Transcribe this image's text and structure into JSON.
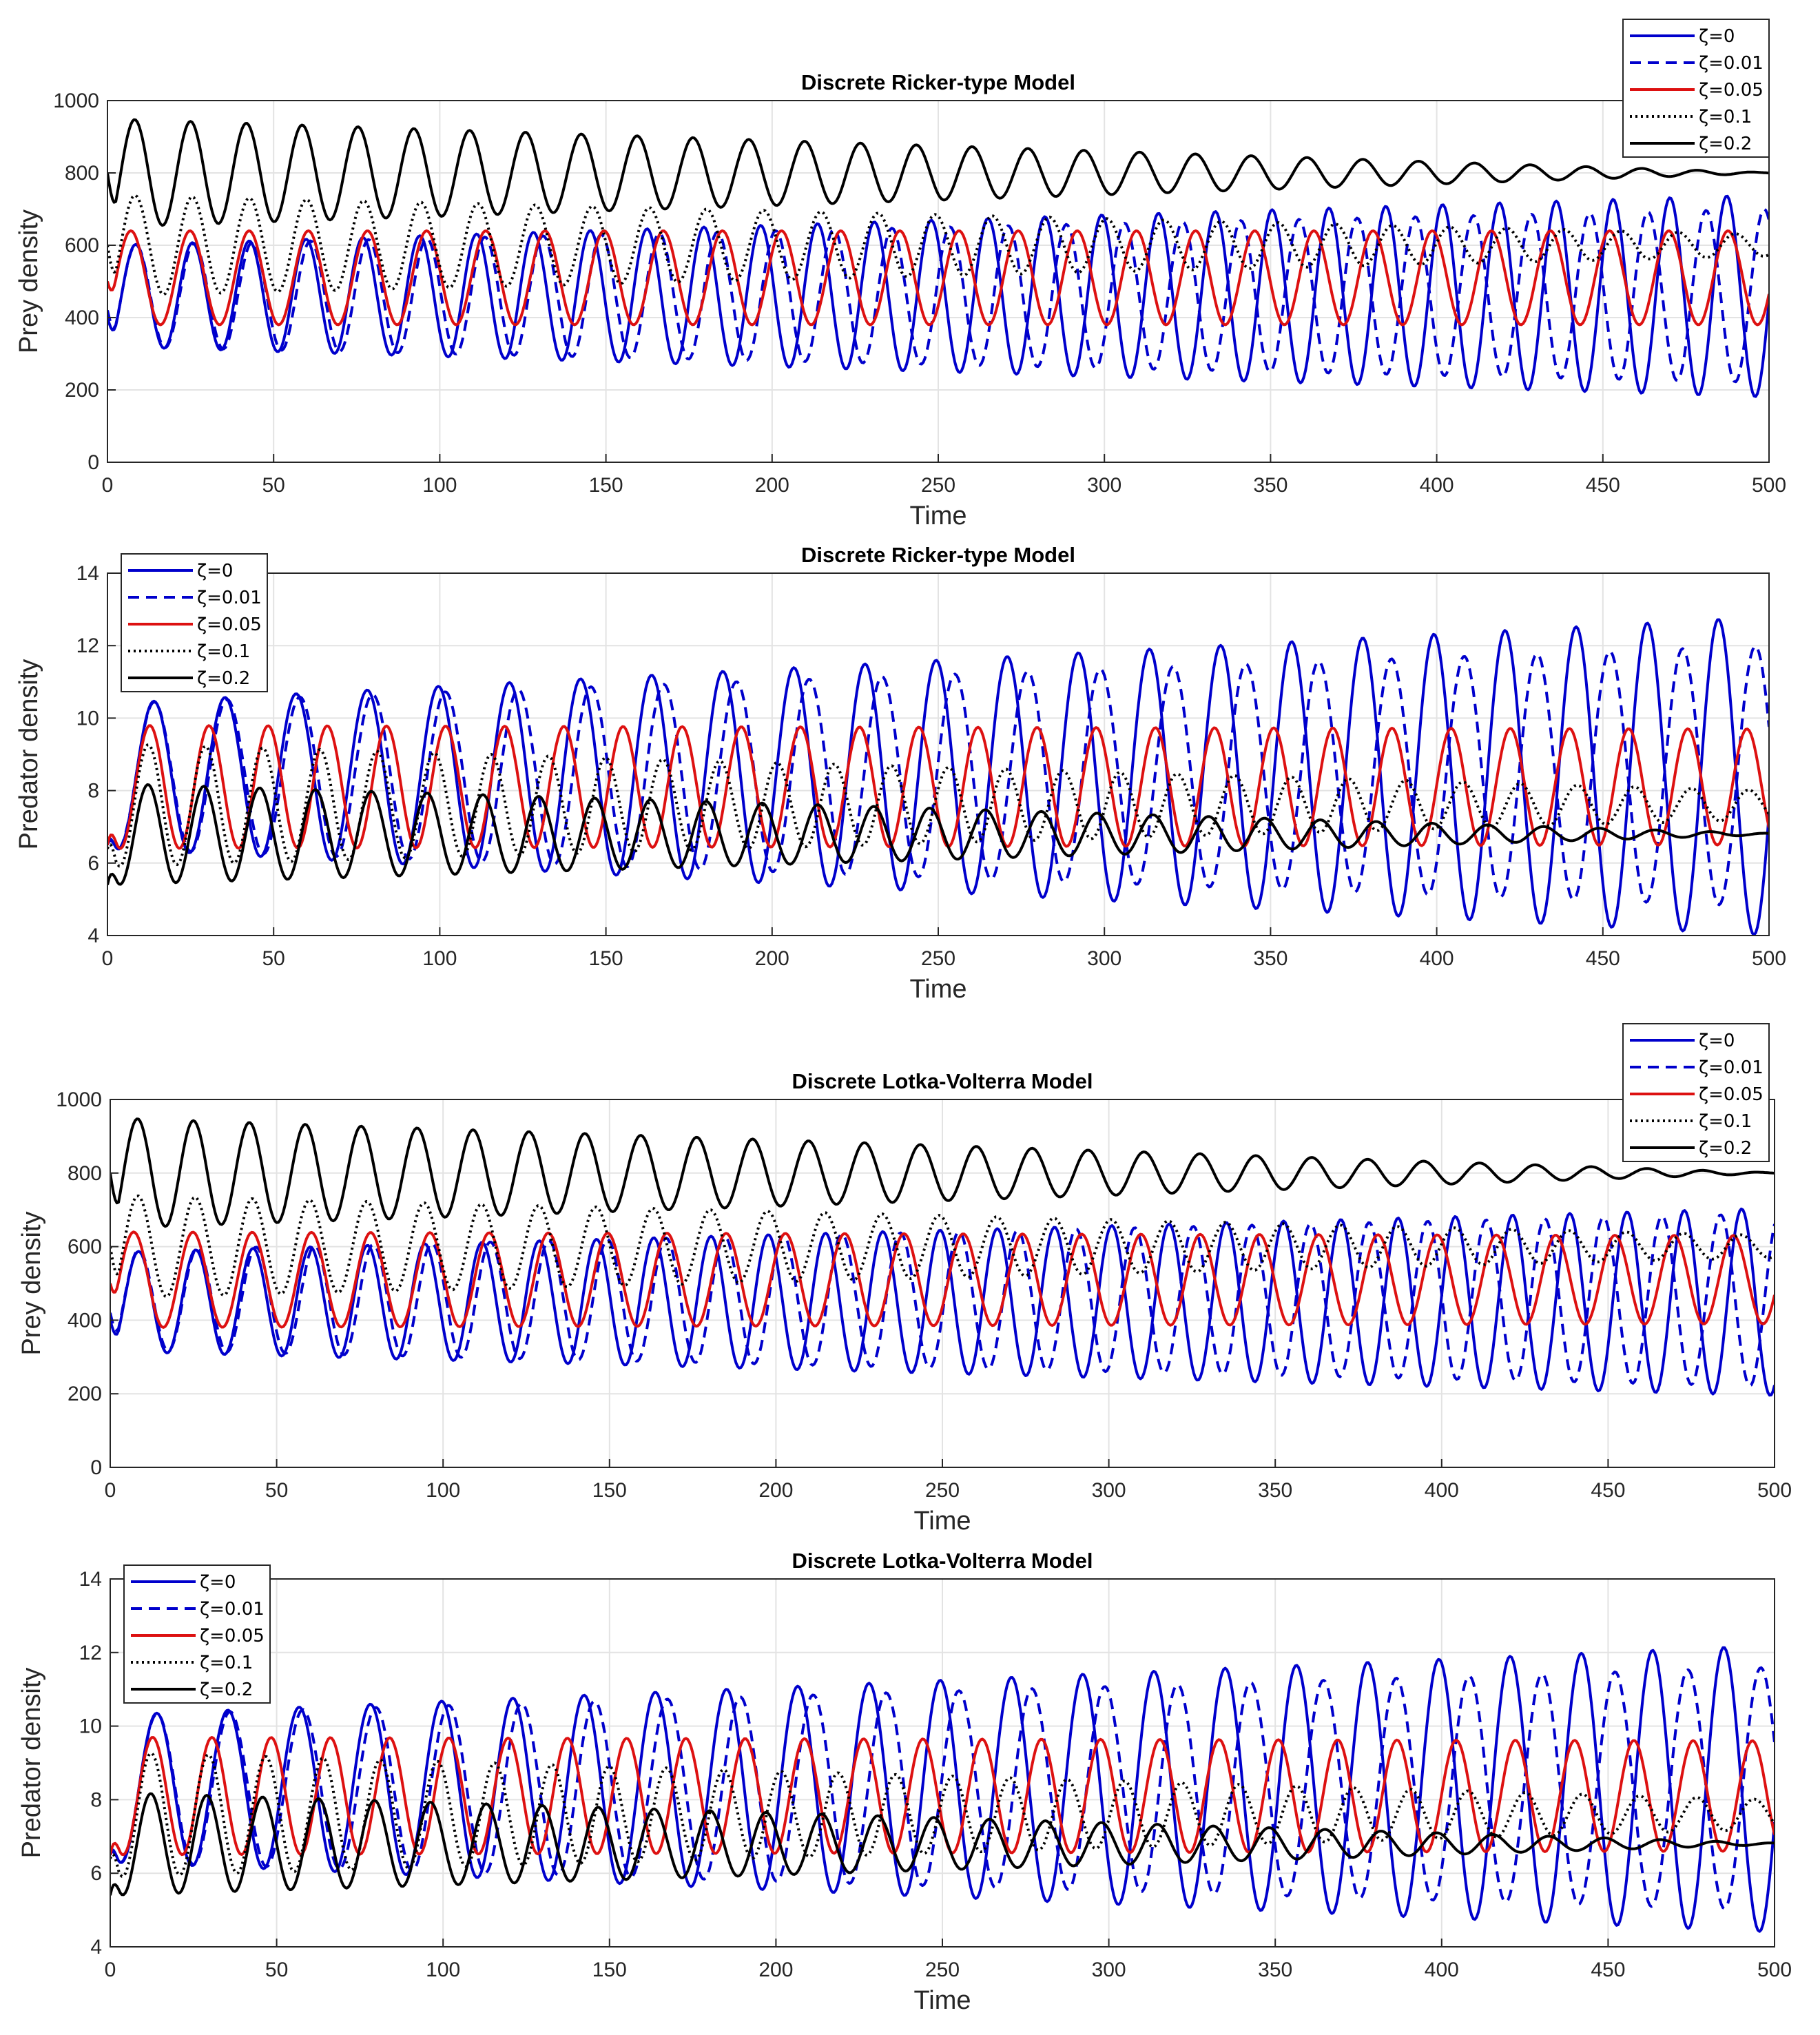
{
  "chart_data": [
    {
      "type": "line",
      "title": "Discrete Ricker-type Model",
      "xlabel": "Time",
      "ylabel": "Prey density",
      "xlim": [
        0,
        500
      ],
      "ylim": [
        0,
        1000
      ],
      "xticks": [
        0,
        50,
        100,
        150,
        200,
        250,
        300,
        350,
        400,
        450,
        500
      ],
      "yticks": [
        0,
        200,
        400,
        600,
        800,
        1000
      ],
      "ytick_labels": [
        "0",
        "200",
        "400",
        "600",
        "800",
        "1000"
      ],
      "grid": true,
      "legend_position": "top-right",
      "series": [
        {
          "name": "ζ=0",
          "color": "#0000cc",
          "style": "solid",
          "x0": 400,
          "eq": 460,
          "amp": 140,
          "amp_end": 280,
          "period": 17.1,
          "phase": 4.2
        },
        {
          "name": "ζ=0.01",
          "color": "#0000cc",
          "style": "dashed",
          "x0": 420,
          "eq": 460,
          "amp": 140,
          "amp_end": 240,
          "period": 17.5,
          "phase": 4.2
        },
        {
          "name": "ζ=0.05",
          "color": "#dd1111",
          "style": "solid",
          "x0": 500,
          "eq": 510,
          "amp": 130,
          "amp_end": 130,
          "period": 17.8,
          "phase": 2.6
        },
        {
          "name": "ζ=0.1",
          "color": "#000000",
          "style": "dotted",
          "x0": 600,
          "eq": 600,
          "amp": 140,
          "amp_end": 30,
          "period": 17.2,
          "phase": 4.0
        },
        {
          "name": "ζ=0.2",
          "color": "#000000",
          "style": "solid",
          "x0": 800,
          "eq": 800,
          "amp": 150,
          "amp_end": 1,
          "period": 16.8,
          "phase": 4.0
        }
      ]
    },
    {
      "type": "line",
      "title": "Discrete Ricker-type Model",
      "xlabel": "Time",
      "ylabel": "Predator density",
      "xlim": [
        0,
        500
      ],
      "ylim": [
        4,
        14
      ],
      "xticks": [
        0,
        50,
        100,
        150,
        200,
        250,
        300,
        350,
        400,
        450,
        500
      ],
      "yticks": [
        4,
        6,
        8,
        10,
        12,
        14
      ],
      "ytick_labels": [
        "4",
        "6",
        "8",
        "10",
        "12",
        "14"
      ],
      "grid": true,
      "legend_position": "top-left",
      "series": [
        {
          "name": "ζ=0",
          "color": "#0000cc",
          "style": "solid",
          "x0": 6.5,
          "eq": 8.4,
          "amp": 2.0,
          "amp_end": 4.4,
          "period": 21.4,
          "phase": 8.6
        },
        {
          "name": "ζ=0.01",
          "color": "#0000cc",
          "style": "dashed",
          "x0": 6.6,
          "eq": 8.4,
          "amp": 2.0,
          "amp_end": 3.6,
          "period": 21.9,
          "phase": 8.6
        },
        {
          "name": "ζ=0.05",
          "color": "#dd1111",
          "style": "solid",
          "x0": 6.5,
          "eq": 8.1,
          "amp": 1.7,
          "amp_end": 1.6,
          "period": 17.8,
          "phase": 8.3
        },
        {
          "name": "ζ=0.1",
          "color": "#000000",
          "style": "dotted",
          "x0": 6.4,
          "eq": 7.6,
          "amp": 1.7,
          "amp_end": 0.4,
          "period": 17.2,
          "phase": 8.0
        },
        {
          "name": "ζ=0.2",
          "color": "#000000",
          "style": "solid",
          "x0": 5.4,
          "eq": 6.8,
          "amp": 1.4,
          "amp_end": 0.02,
          "period": 16.8,
          "phase": 8.0
        }
      ]
    },
    {
      "type": "line",
      "title": "Discrete Lotka-Volterra Model",
      "xlabel": "Time",
      "ylabel": "Prey density",
      "xlim": [
        0,
        500
      ],
      "ylim": [
        0,
        1000
      ],
      "xticks": [
        0,
        50,
        100,
        150,
        200,
        250,
        300,
        350,
        400,
        450,
        500
      ],
      "yticks": [
        0,
        200,
        400,
        600,
        800,
        1000
      ],
      "ytick_labels": [
        "0",
        "200",
        "400",
        "600",
        "800",
        "1000"
      ],
      "grid": true,
      "legend_position": "top-right",
      "series": [
        {
          "name": "ζ=0",
          "color": "#0000cc",
          "style": "solid",
          "x0": 400,
          "eq": 450,
          "amp": 135,
          "amp_end": 255,
          "period": 17.2,
          "phase": 4.2
        },
        {
          "name": "ζ=0.01",
          "color": "#0000cc",
          "style": "dashed",
          "x0": 420,
          "eq": 455,
          "amp": 135,
          "amp_end": 235,
          "period": 17.6,
          "phase": 4.2
        },
        {
          "name": "ζ=0.05",
          "color": "#dd1111",
          "style": "solid",
          "x0": 500,
          "eq": 510,
          "amp": 130,
          "amp_end": 120,
          "period": 17.8,
          "phase": 2.6
        },
        {
          "name": "ζ=0.1",
          "color": "#000000",
          "style": "dotted",
          "x0": 600,
          "eq": 600,
          "amp": 140,
          "amp_end": 30,
          "period": 17.2,
          "phase": 4.0
        },
        {
          "name": "ζ=0.2",
          "color": "#000000",
          "style": "solid",
          "x0": 800,
          "eq": 800,
          "amp": 150,
          "amp_end": 1,
          "period": 16.8,
          "phase": 4.0
        }
      ]
    },
    {
      "type": "line",
      "title": "Discrete Lotka-Volterra Model",
      "xlabel": "Time",
      "ylabel": "Predator density",
      "xlim": [
        0,
        500
      ],
      "ylim": [
        4,
        14
      ],
      "xticks": [
        0,
        50,
        100,
        150,
        200,
        250,
        300,
        350,
        400,
        450,
        500
      ],
      "yticks": [
        4,
        6,
        8,
        10,
        12,
        14
      ],
      "ytick_labels": [
        "4",
        "6",
        "8",
        "10",
        "12",
        "14"
      ],
      "grid": true,
      "legend_position": "top-left",
      "series": [
        {
          "name": "ζ=0",
          "color": "#0000cc",
          "style": "solid",
          "x0": 6.5,
          "eq": 8.3,
          "amp": 2.0,
          "amp_end": 3.9,
          "period": 21.4,
          "phase": 8.6
        },
        {
          "name": "ζ=0.01",
          "color": "#0000cc",
          "style": "dashed",
          "x0": 6.6,
          "eq": 8.3,
          "amp": 2.0,
          "amp_end": 3.3,
          "period": 21.9,
          "phase": 8.6
        },
        {
          "name": "ζ=0.05",
          "color": "#dd1111",
          "style": "solid",
          "x0": 6.5,
          "eq": 8.1,
          "amp": 1.6,
          "amp_end": 1.5,
          "period": 17.8,
          "phase": 8.3
        },
        {
          "name": "ζ=0.1",
          "color": "#000000",
          "style": "dotted",
          "x0": 6.4,
          "eq": 7.6,
          "amp": 1.7,
          "amp_end": 0.4,
          "period": 17.2,
          "phase": 8.0
        },
        {
          "name": "ζ=0.2",
          "color": "#000000",
          "style": "solid",
          "x0": 5.4,
          "eq": 6.8,
          "amp": 1.4,
          "amp_end": 0.02,
          "period": 16.8,
          "phase": 8.0
        }
      ]
    }
  ]
}
